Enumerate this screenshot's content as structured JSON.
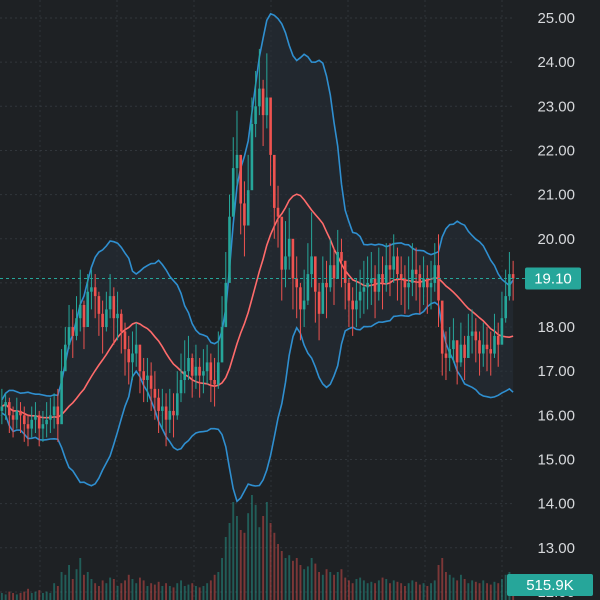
{
  "chart_data": {
    "type": "candlestick",
    "y_axis": {
      "ticks": [
        "25.00",
        "24.00",
        "23.00",
        "22.00",
        "21.00",
        "20.00",
        "19.00",
        "18.00",
        "17.00",
        "16.00",
        "15.00",
        "14.00",
        "13.00",
        "12.00"
      ],
      "ylim": [
        12.0,
        25.4
      ],
      "side": "right"
    },
    "last_price": {
      "value": 19.1,
      "label": "19.10",
      "color": "#26a69a"
    },
    "volume_badge": {
      "label": "515.9K",
      "color": "#26a69a"
    },
    "colors": {
      "up": "#26a69a",
      "down": "#ef5350",
      "bollinger": "#2f8fd0",
      "moving_average": "#ff6b6b",
      "background": "#1e2124",
      "grid": "#3a3f45",
      "band_fill": "#263038"
    },
    "grid": true,
    "series_close": [
      16.2,
      16.3,
      16.0,
      15.9,
      16.1,
      16.0,
      15.8,
      15.7,
      15.9,
      16.0,
      15.7,
      15.8,
      15.9,
      16.0,
      16.2,
      15.8,
      17.0,
      17.6,
      18.0,
      17.8,
      18.2,
      18.5,
      18.0,
      18.8,
      18.9,
      18.7,
      18.3,
      18.0,
      18.4,
      18.7,
      18.2,
      18.3,
      17.9,
      17.5,
      17.2,
      17.4,
      17.6,
      17.0,
      16.8,
      16.9,
      16.6,
      16.4,
      16.1,
      16.2,
      15.9,
      16.1,
      16.0,
      16.5,
      16.8,
      17.0,
      17.3,
      16.9,
      17.1,
      16.9,
      17.0,
      17.2,
      16.8,
      16.7,
      17.2,
      18.0,
      19.0,
      20.5,
      21.6,
      21.9,
      20.8,
      20.3,
      21.1,
      22.6,
      23.0,
      23.4,
      22.8,
      23.2,
      21.9,
      20.7,
      20.5,
      19.3,
      19.6,
      20.0,
      19.1,
      18.9,
      18.4,
      18.6,
      19.2,
      19.6,
      18.8,
      18.3,
      19.0,
      18.9,
      19.4,
      19.1,
      19.7,
      19.5,
      19.0,
      18.6,
      18.4,
      18.6,
      18.8,
      18.9,
      19.0,
      19.1,
      18.8,
      19.2,
      19.0,
      19.4,
      19.3,
      19.6,
      19.2,
      19.1,
      18.9,
      19.0,
      19.3,
      19.2,
      18.9,
      19.1,
      18.9,
      19.0,
      19.4,
      18.6,
      17.4,
      17.3,
      17.5,
      17.7,
      17.2,
      17.6,
      17.3,
      17.8,
      17.9,
      17.7,
      17.4,
      17.6,
      17.5,
      17.4,
      17.8,
      17.6,
      18.2,
      18.7,
      19.2,
      19.1
    ],
    "series_high": [
      16.6,
      16.5,
      16.4,
      16.2,
      16.4,
      16.3,
      16.2,
      16.0,
      16.2,
      16.3,
      16.1,
      16.1,
      16.3,
      16.4,
      16.5,
      16.6,
      17.5,
      18.0,
      18.5,
      18.4,
      18.7,
      19.3,
      18.6,
      19.2,
      19.3,
      19.2,
      18.8,
      18.6,
      18.8,
      19.2,
      18.9,
      18.8,
      18.4,
      18.1,
      17.8,
      17.9,
      18.1,
      17.6,
      17.3,
      17.3,
      17.2,
      17.0,
      16.6,
      16.6,
      16.5,
      16.6,
      16.5,
      17.0,
      17.4,
      17.7,
      17.8,
      17.4,
      17.6,
      17.3,
      17.5,
      17.6,
      17.4,
      17.3,
      17.9,
      18.7,
      19.7,
      21.0,
      22.3,
      22.9,
      21.9,
      21.3,
      21.9,
      23.2,
      23.8,
      24.3,
      23.6,
      24.2,
      23.0,
      21.6,
      21.2,
      20.0,
      20.4,
      20.7,
      19.8,
      19.6,
      19.0,
      19.3,
      19.9,
      20.6,
      19.5,
      19.0,
      19.6,
      19.5,
      20.0,
      19.8,
      20.2,
      20.0,
      19.5,
      19.1,
      18.9,
      19.1,
      19.3,
      19.5,
      19.6,
      19.7,
      19.4,
      19.8,
      19.6,
      19.9,
      19.9,
      20.1,
      19.8,
      19.6,
      19.4,
      19.6,
      19.9,
      19.8,
      19.4,
      19.6,
      19.4,
      19.5,
      19.9,
      20.1,
      18.2,
      17.9,
      18.0,
      18.2,
      17.7,
      18.1,
      17.8,
      18.3,
      18.4,
      18.2,
      17.9,
      18.1,
      18.0,
      17.9,
      18.3,
      18.1,
      18.8,
      19.3,
      19.7,
      19.5
    ],
    "series_low": [
      15.8,
      15.9,
      15.6,
      15.5,
      15.7,
      15.6,
      15.4,
      15.3,
      15.5,
      15.6,
      15.3,
      15.4,
      15.5,
      15.6,
      15.7,
      15.4,
      16.5,
      17.1,
      17.5,
      17.3,
      17.7,
      17.9,
      17.5,
      18.2,
      18.4,
      18.2,
      17.8,
      17.4,
      17.9,
      18.2,
      17.6,
      17.7,
      17.4,
      16.9,
      16.7,
      16.8,
      17.1,
      16.5,
      16.3,
      16.3,
      16.1,
      15.9,
      15.6,
      15.7,
      15.3,
      15.6,
      15.5,
      15.9,
      16.3,
      16.5,
      16.8,
      16.4,
      16.6,
      16.4,
      16.5,
      16.7,
      16.3,
      16.2,
      16.6,
      17.4,
      18.3,
      19.8,
      20.9,
      21.2,
      20.1,
      19.6,
      20.4,
      21.9,
      22.3,
      22.8,
      22.1,
      22.5,
      21.2,
      20.0,
      19.8,
      18.6,
      18.9,
      19.3,
      18.4,
      18.2,
      17.7,
      18.0,
      18.5,
      18.9,
      18.1,
      17.7,
      18.3,
      18.2,
      18.8,
      18.5,
      19.1,
      18.9,
      18.4,
      18.0,
      17.8,
      18.0,
      18.2,
      18.3,
      18.4,
      18.5,
      18.2,
      18.6,
      18.4,
      18.8,
      18.7,
      19.0,
      18.6,
      18.5,
      18.3,
      18.4,
      18.7,
      18.6,
      18.3,
      18.5,
      18.3,
      18.4,
      18.8,
      18.0,
      16.9,
      16.8,
      17.0,
      17.2,
      16.7,
      17.1,
      16.8,
      17.3,
      17.4,
      17.2,
      16.9,
      17.1,
      17.0,
      16.9,
      17.3,
      17.1,
      17.7,
      18.1,
      18.6,
      18.6
    ],
    "series_volume": [
      0.05,
      0.04,
      0.06,
      0.05,
      0.04,
      0.05,
      0.06,
      0.08,
      0.05,
      0.06,
      0.07,
      0.05,
      0.06,
      0.05,
      0.12,
      0.1,
      0.2,
      0.18,
      0.25,
      0.15,
      0.22,
      0.3,
      0.18,
      0.2,
      0.15,
      0.12,
      0.1,
      0.14,
      0.12,
      0.16,
      0.15,
      0.1,
      0.12,
      0.14,
      0.18,
      0.15,
      0.12,
      0.16,
      0.14,
      0.1,
      0.12,
      0.11,
      0.13,
      0.1,
      0.12,
      0.1,
      0.09,
      0.12,
      0.14,
      0.1,
      0.11,
      0.12,
      0.1,
      0.09,
      0.1,
      0.12,
      0.14,
      0.18,
      0.2,
      0.3,
      0.45,
      0.55,
      0.7,
      0.6,
      0.5,
      0.48,
      0.62,
      0.75,
      0.68,
      0.52,
      0.6,
      0.7,
      0.55,
      0.48,
      0.4,
      0.35,
      0.3,
      0.32,
      0.28,
      0.3,
      0.25,
      0.22,
      0.24,
      0.3,
      0.26,
      0.2,
      0.18,
      0.22,
      0.2,
      0.18,
      0.2,
      0.22,
      0.16,
      0.14,
      0.12,
      0.15,
      0.16,
      0.14,
      0.12,
      0.13,
      0.12,
      0.14,
      0.16,
      0.15,
      0.12,
      0.14,
      0.13,
      0.12,
      0.1,
      0.12,
      0.14,
      0.13,
      0.11,
      0.12,
      0.1,
      0.12,
      0.14,
      0.25,
      0.3,
      0.2,
      0.18,
      0.16,
      0.14,
      0.18,
      0.15,
      0.12,
      0.14,
      0.13,
      0.12,
      0.14,
      0.12,
      0.11,
      0.13,
      0.12,
      0.15,
      0.18,
      0.2,
      0.18
    ]
  }
}
